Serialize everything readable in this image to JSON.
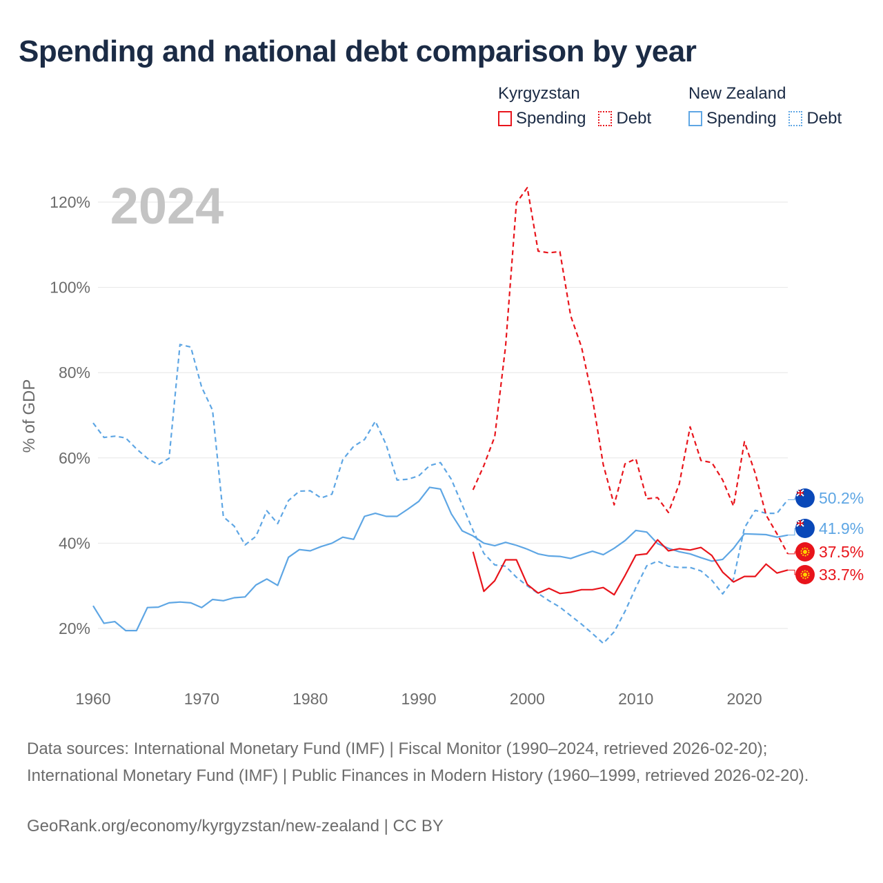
{
  "title": "Spending and national debt comparison by year",
  "legend": {
    "kyrgyzstan": {
      "country": "Kyrgyzstan",
      "spending": "Spending",
      "debt": "Debt"
    },
    "new_zealand": {
      "country": "New Zealand",
      "spending": "Spending",
      "debt": "Debt"
    }
  },
  "colors": {
    "kyrgyzstan": "#e8141b",
    "new_zealand": "#5ea6e4",
    "grid": "#e6e6e6",
    "axis_text": "#6b6b6b",
    "year_watermark": "#c4c4c4"
  },
  "chart_data": {
    "type": "line",
    "title": "Spending and national debt comparison by year",
    "ylabel": "% of GDP",
    "xlabel": "",
    "year_label": "2024",
    "xlim": [
      1960,
      2024
    ],
    "ylim": [
      8,
      130
    ],
    "x_ticks": [
      1960,
      1970,
      1980,
      1990,
      2000,
      2010,
      2020
    ],
    "y_ticks": [
      20,
      40,
      60,
      80,
      100,
      120
    ],
    "y_tick_labels": [
      "20%",
      "40%",
      "60%",
      "80%",
      "100%",
      "120%"
    ],
    "series": [
      {
        "name": "New Zealand Debt",
        "country": "New Zealand",
        "metric": "Debt",
        "style": "dashed",
        "color": "#5ea6e4",
        "end_label": "50.2%",
        "points": [
          [
            1960,
            68.2
          ],
          [
            1961,
            64.8
          ],
          [
            1962,
            65.1
          ],
          [
            1963,
            64.7
          ],
          [
            1964,
            62.1
          ],
          [
            1965,
            59.9
          ],
          [
            1966,
            58.4
          ],
          [
            1967,
            59.9
          ],
          [
            1968,
            86.6
          ],
          [
            1969,
            86.0
          ],
          [
            1970,
            76.6
          ],
          [
            1971,
            71.2
          ],
          [
            1972,
            46.2
          ],
          [
            1973,
            44.0
          ],
          [
            1974,
            39.6
          ],
          [
            1975,
            41.6
          ],
          [
            1976,
            47.6
          ],
          [
            1977,
            44.6
          ],
          [
            1978,
            50.0
          ],
          [
            1979,
            52.2
          ],
          [
            1980,
            52.3
          ],
          [
            1981,
            50.6
          ],
          [
            1982,
            51.5
          ],
          [
            1983,
            59.6
          ],
          [
            1984,
            62.7
          ],
          [
            1985,
            64.3
          ],
          [
            1986,
            68.6
          ],
          [
            1987,
            63.1
          ],
          [
            1988,
            54.8
          ],
          [
            1989,
            55.0
          ],
          [
            1990,
            55.8
          ],
          [
            1991,
            58.2
          ],
          [
            1992,
            58.9
          ],
          [
            1993,
            55.0
          ],
          [
            1994,
            49.0
          ],
          [
            1995,
            43.0
          ],
          [
            1996,
            37.6
          ],
          [
            1997,
            34.9
          ],
          [
            1998,
            34.6
          ],
          [
            1999,
            32.0
          ],
          [
            2000,
            30.0
          ],
          [
            2001,
            28.2
          ],
          [
            2002,
            26.5
          ],
          [
            2003,
            25.0
          ],
          [
            2004,
            23.0
          ],
          [
            2005,
            21.0
          ],
          [
            2006,
            18.8
          ],
          [
            2007,
            16.5
          ],
          [
            2008,
            19.2
          ],
          [
            2009,
            24.0
          ],
          [
            2010,
            29.6
          ],
          [
            2011,
            34.7
          ],
          [
            2012,
            35.8
          ],
          [
            2013,
            34.6
          ],
          [
            2014,
            34.3
          ],
          [
            2015,
            34.3
          ],
          [
            2016,
            33.5
          ],
          [
            2017,
            31.3
          ],
          [
            2018,
            28.1
          ],
          [
            2019,
            31.6
          ],
          [
            2020,
            43.6
          ],
          [
            2021,
            47.7
          ],
          [
            2022,
            47.0
          ],
          [
            2023,
            47.0
          ],
          [
            2024,
            50.2
          ]
        ]
      },
      {
        "name": "New Zealand Spending",
        "country": "New Zealand",
        "metric": "Spending",
        "style": "solid",
        "color": "#5ea6e4",
        "end_label": "41.9%",
        "points": [
          [
            1960,
            25.3
          ],
          [
            1961,
            21.2
          ],
          [
            1962,
            21.6
          ],
          [
            1963,
            19.5
          ],
          [
            1964,
            19.5
          ],
          [
            1965,
            24.9
          ],
          [
            1966,
            25.0
          ],
          [
            1967,
            26.0
          ],
          [
            1968,
            26.2
          ],
          [
            1969,
            26.0
          ],
          [
            1970,
            24.9
          ],
          [
            1971,
            26.8
          ],
          [
            1972,
            26.5
          ],
          [
            1973,
            27.2
          ],
          [
            1974,
            27.4
          ],
          [
            1975,
            30.2
          ],
          [
            1976,
            31.6
          ],
          [
            1977,
            30.1
          ],
          [
            1978,
            36.7
          ],
          [
            1979,
            38.5
          ],
          [
            1980,
            38.2
          ],
          [
            1981,
            39.2
          ],
          [
            1982,
            40.0
          ],
          [
            1983,
            41.4
          ],
          [
            1984,
            40.9
          ],
          [
            1985,
            46.3
          ],
          [
            1986,
            47.0
          ],
          [
            1987,
            46.3
          ],
          [
            1988,
            46.3
          ],
          [
            1989,
            48.0
          ],
          [
            1990,
            49.8
          ],
          [
            1991,
            53.1
          ],
          [
            1992,
            52.7
          ],
          [
            1993,
            46.9
          ],
          [
            1994,
            42.9
          ],
          [
            1995,
            41.7
          ],
          [
            1996,
            40.0
          ],
          [
            1997,
            39.4
          ],
          [
            1998,
            40.2
          ],
          [
            1999,
            39.5
          ],
          [
            2000,
            38.6
          ],
          [
            2001,
            37.5
          ],
          [
            2002,
            37.0
          ],
          [
            2003,
            36.9
          ],
          [
            2004,
            36.4
          ],
          [
            2005,
            37.3
          ],
          [
            2006,
            38.1
          ],
          [
            2007,
            37.3
          ],
          [
            2008,
            38.8
          ],
          [
            2009,
            40.6
          ],
          [
            2010,
            43.0
          ],
          [
            2011,
            42.6
          ],
          [
            2012,
            39.9
          ],
          [
            2013,
            38.8
          ],
          [
            2014,
            38.0
          ],
          [
            2015,
            37.5
          ],
          [
            2016,
            36.6
          ],
          [
            2017,
            35.8
          ],
          [
            2018,
            36.2
          ],
          [
            2019,
            38.8
          ],
          [
            2020,
            42.2
          ],
          [
            2021,
            42.1
          ],
          [
            2022,
            42.0
          ],
          [
            2023,
            41.4
          ],
          [
            2024,
            41.9
          ]
        ]
      },
      {
        "name": "Kyrgyzstan Debt",
        "country": "Kyrgyzstan",
        "metric": "Debt",
        "style": "dashed",
        "color": "#e8141b",
        "end_label": "37.5%",
        "points": [
          [
            1995,
            52.5
          ],
          [
            1996,
            58.2
          ],
          [
            1997,
            65.0
          ],
          [
            1998,
            86.2
          ],
          [
            1999,
            119.8
          ],
          [
            2000,
            123.4
          ],
          [
            2001,
            108.5
          ],
          [
            2002,
            108.1
          ],
          [
            2003,
            108.4
          ],
          [
            2004,
            93.3
          ],
          [
            2005,
            86.0
          ],
          [
            2006,
            74.0
          ],
          [
            2007,
            58.4
          ],
          [
            2008,
            49.0
          ],
          [
            2009,
            58.6
          ],
          [
            2010,
            59.8
          ],
          [
            2011,
            50.4
          ],
          [
            2012,
            50.7
          ],
          [
            2013,
            47.2
          ],
          [
            2014,
            53.9
          ],
          [
            2015,
            67.3
          ],
          [
            2016,
            59.4
          ],
          [
            2017,
            58.9
          ],
          [
            2018,
            54.8
          ],
          [
            2019,
            48.7
          ],
          [
            2020,
            63.8
          ],
          [
            2021,
            56.4
          ],
          [
            2022,
            46.6
          ],
          [
            2023,
            42.2
          ],
          [
            2024,
            37.5
          ]
        ]
      },
      {
        "name": "Kyrgyzstan Spending",
        "country": "Kyrgyzstan",
        "metric": "Spending",
        "style": "solid",
        "color": "#e8141b",
        "end_label": "33.7%",
        "points": [
          [
            1995,
            38.0
          ],
          [
            1996,
            28.7
          ],
          [
            1997,
            31.2
          ],
          [
            1998,
            36.1
          ],
          [
            1999,
            36.1
          ],
          [
            2000,
            30.3
          ],
          [
            2001,
            28.3
          ],
          [
            2002,
            29.4
          ],
          [
            2003,
            28.2
          ],
          [
            2004,
            28.5
          ],
          [
            2005,
            29.1
          ],
          [
            2006,
            29.1
          ],
          [
            2007,
            29.6
          ],
          [
            2008,
            27.9
          ],
          [
            2009,
            32.4
          ],
          [
            2010,
            37.2
          ],
          [
            2011,
            37.5
          ],
          [
            2012,
            40.8
          ],
          [
            2013,
            38.2
          ],
          [
            2014,
            38.7
          ],
          [
            2015,
            38.4
          ],
          [
            2016,
            39.0
          ],
          [
            2017,
            37.1
          ],
          [
            2018,
            33.2
          ],
          [
            2019,
            30.9
          ],
          [
            2020,
            32.2
          ],
          [
            2021,
            32.2
          ],
          [
            2022,
            35.1
          ],
          [
            2023,
            33.0
          ],
          [
            2024,
            33.7
          ]
        ]
      }
    ]
  },
  "footer": {
    "sources": "Data sources: International Monetary Fund (IMF) | Fiscal Monitor (1990–2024, retrieved 2026-02-20); International Monetary Fund (IMF) | Public Finances in Modern History (1960–1999, retrieved 2026-02-20).",
    "credit": "GeoRank.org/economy/kyrgyzstan/new-zealand | CC BY"
  }
}
